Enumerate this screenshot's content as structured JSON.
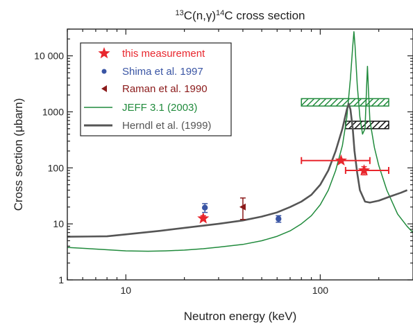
{
  "chart_data": {
    "type": "scatter",
    "title": {
      "pre_sup": "13",
      "a": "C(n,γ)",
      "mid_sup": "14",
      "b": "C cross section"
    },
    "xlabel": "Neutron energy (keV)",
    "ylabel": "Cross section (μbarn)",
    "x_scale": "log",
    "y_scale": "log",
    "xlim": [
      5,
      300
    ],
    "ylim": [
      1,
      30000
    ],
    "x_ticks": [
      {
        "value": 10,
        "label": "10"
      },
      {
        "value": 100,
        "label": "100"
      }
    ],
    "y_ticks": [
      {
        "value": 1,
        "label": "1"
      },
      {
        "value": 10,
        "label": "10"
      },
      {
        "value": 100,
        "label": "100"
      },
      {
        "value": 1000,
        "label": "1000"
      },
      {
        "value": 10000,
        "label": "10 000"
      }
    ],
    "legend_position": "top-left",
    "legend": [
      {
        "label": "this measurement",
        "color": "#e8262d",
        "marker": "star"
      },
      {
        "label": "Shima et al. 1997",
        "color": "#3a55a4",
        "marker": "circle"
      },
      {
        "label": "Raman et al. 1990",
        "color": "#8b1a1a",
        "marker": "triangle-left"
      },
      {
        "label": "JEFF 3.1 (2003)",
        "color": "#1f8a3b",
        "marker": "line"
      },
      {
        "label": "Herndl et al. (1999)",
        "color": "#555555",
        "marker": "thick-line"
      }
    ],
    "series": [
      {
        "name": "this measurement",
        "color": "#e8262d",
        "points": [
          {
            "x": 25,
            "y": 12.5,
            "xerr": null,
            "yerr": [
              11.5,
              14
            ]
          },
          {
            "x": 128,
            "y": 135,
            "xerr": [
              80,
              180
            ],
            "yerr": null
          },
          {
            "x": 168,
            "y": 90,
            "xerr": [
              135,
              225
            ],
            "yerr": [
              75,
              105
            ]
          }
        ]
      },
      {
        "name": "Shima et al. 1997",
        "color": "#3a55a4",
        "points": [
          {
            "x": 25.5,
            "y": 19.5,
            "yerr": [
              16,
              23
            ]
          },
          {
            "x": 61,
            "y": 12.3,
            "yerr": [
              10.7,
              14
            ]
          }
        ]
      },
      {
        "name": "Raman et al. 1990",
        "color": "#8b1a1a",
        "points": [
          {
            "x": 40,
            "y": 20,
            "yerr": [
              12,
              29
            ]
          }
        ]
      },
      {
        "name": "JEFF 3.1 (2003)",
        "color": "#1f8a3b",
        "points": [
          [
            5,
            3.8
          ],
          [
            7,
            3.55
          ],
          [
            10,
            3.3
          ],
          [
            13,
            3.25
          ],
          [
            16,
            3.3
          ],
          [
            20,
            3.4
          ],
          [
            25,
            3.6
          ],
          [
            30,
            3.85
          ],
          [
            40,
            4.3
          ],
          [
            50,
            5.0
          ],
          [
            60,
            6.0
          ],
          [
            70,
            7.5
          ],
          [
            80,
            10
          ],
          [
            90,
            14
          ],
          [
            100,
            22
          ],
          [
            110,
            40
          ],
          [
            120,
            90
          ],
          [
            130,
            250
          ],
          [
            137,
            800
          ],
          [
            143,
            4000
          ],
          [
            147,
            15000
          ],
          [
            149,
            27000
          ],
          [
            151,
            15000
          ],
          [
            155,
            3000
          ],
          [
            160,
            800
          ],
          [
            165,
            400
          ],
          [
            170,
            500
          ],
          [
            173,
            2500
          ],
          [
            175,
            6500
          ],
          [
            177,
            2500
          ],
          [
            180,
            700
          ],
          [
            190,
            230
          ],
          [
            200,
            110
          ],
          [
            220,
            40
          ],
          [
            250,
            15
          ],
          [
            280,
            9
          ],
          [
            300,
            7
          ]
        ]
      },
      {
        "name": "Herndl et al. (1999)",
        "color": "#555555",
        "points": [
          [
            5,
            5.9
          ],
          [
            8,
            6.0
          ],
          [
            10,
            6.5
          ],
          [
            15,
            7.5
          ],
          [
            20,
            8.5
          ],
          [
            25,
            9.3
          ],
          [
            30,
            10
          ],
          [
            40,
            11.5
          ],
          [
            50,
            13.5
          ],
          [
            60,
            16
          ],
          [
            70,
            20
          ],
          [
            80,
            25
          ],
          [
            90,
            33
          ],
          [
            100,
            50
          ],
          [
            110,
            90
          ],
          [
            120,
            200
          ],
          [
            130,
            500
          ],
          [
            137,
            1100
          ],
          [
            140,
            1400
          ],
          [
            143,
            1100
          ],
          [
            147,
            500
          ],
          [
            150,
            200
          ],
          [
            155,
            80
          ],
          [
            160,
            40
          ],
          [
            170,
            25
          ],
          [
            180,
            24
          ],
          [
            200,
            26
          ],
          [
            230,
            31
          ],
          [
            260,
            36
          ],
          [
            280,
            40
          ]
        ]
      }
    ],
    "bands": [
      {
        "x": [
          80,
          225
        ],
        "y": [
          1270,
          1720
        ],
        "color": "#1f8a3b",
        "pattern": "hatch"
      },
      {
        "x": [
          135,
          225
        ],
        "y": [
          500,
          680
        ],
        "color": "#111111",
        "pattern": "hatch"
      }
    ]
  }
}
